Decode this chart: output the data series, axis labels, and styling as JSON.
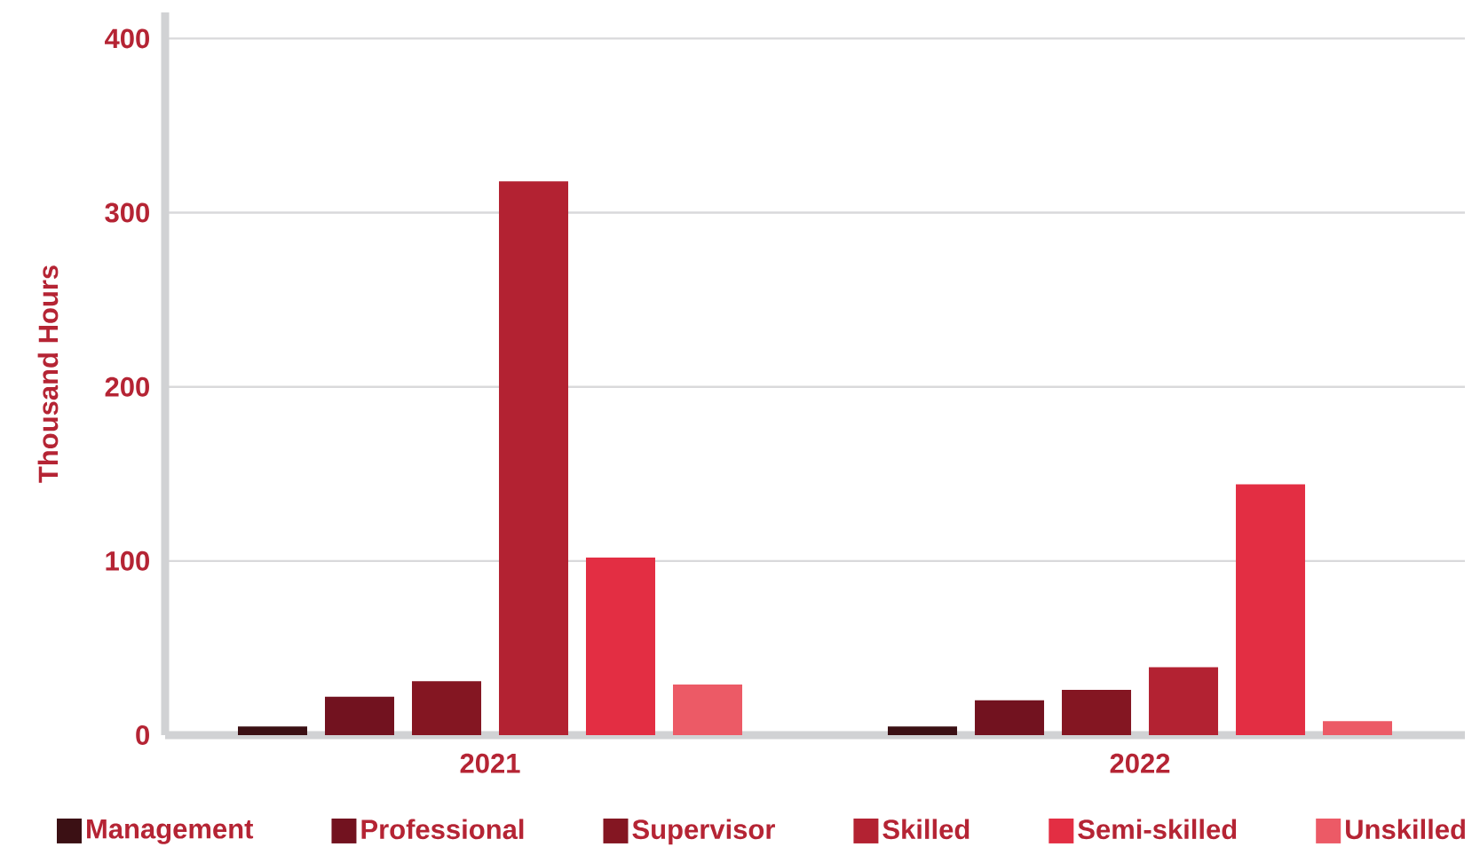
{
  "chart_data": {
    "type": "bar",
    "categories": [
      "2021",
      "2022"
    ],
    "series": [
      {
        "name": "Management",
        "color": "#3b1014",
        "values": [
          5,
          5
        ]
      },
      {
        "name": "Professional",
        "color": "#72121f",
        "values": [
          22,
          20
        ]
      },
      {
        "name": "Supervisor",
        "color": "#841622",
        "values": [
          31,
          26
        ]
      },
      {
        "name": "Skilled",
        "color": "#b32232",
        "values": [
          318,
          39
        ]
      },
      {
        "name": "Semi-skilled",
        "color": "#e32e43",
        "values": [
          102,
          144
        ]
      },
      {
        "name": "Unskilled",
        "color": "#ec5a66",
        "values": [
          29,
          8
        ]
      }
    ],
    "ylabel": "Thousand Hours",
    "ylim": [
      0,
      415
    ],
    "yticks": [
      0,
      100,
      200,
      300,
      400
    ],
    "grid": "y",
    "legend": "bottom"
  }
}
